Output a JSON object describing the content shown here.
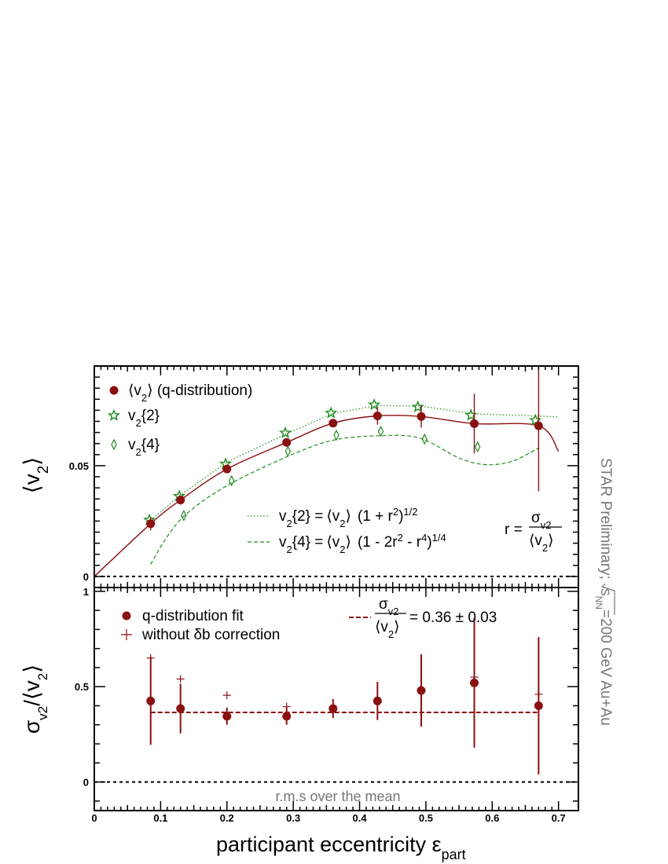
{
  "chart_data": [
    {
      "type": "scatter",
      "panel": "top",
      "ylabel_main": "⟨v",
      "ylabel_sub": "2",
      "ylabel_close": "⟩",
      "ylim": [
        -0.005,
        0.095
      ],
      "xlim": [
        0,
        0.73
      ],
      "y_ticklabels": [
        "0",
        "0.05"
      ],
      "legend": {
        "mean_v2": {
          "main": "⟨v",
          "sub": "2",
          "rest": "⟩ (q-distribution)"
        },
        "v2_2": {
          "main": "v",
          "sub": "2",
          "rest": "{2}"
        },
        "v2_4": {
          "main": "v",
          "sub": "2",
          "rest": "{4}"
        }
      },
      "series": [
        {
          "name": "⟨v2⟩ (q-distribution)",
          "marker": "circle",
          "color": "#8b1010",
          "points": [
            {
              "x": 0.085,
              "y": 0.0238,
              "err": 0.003
            },
            {
              "x": 0.13,
              "y": 0.0345,
              "err": 0.002
            },
            {
              "x": 0.2,
              "y": 0.0485,
              "err": 0.0015
            },
            {
              "x": 0.29,
              "y": 0.0605,
              "err": 0.0015
            },
            {
              "x": 0.36,
              "y": 0.0692,
              "err": 0.0015
            },
            {
              "x": 0.427,
              "y": 0.0725,
              "err": 0.004
            },
            {
              "x": 0.493,
              "y": 0.0722,
              "err": 0.005
            },
            {
              "x": 0.573,
              "y": 0.069,
              "err": 0.0135
            },
            {
              "x": 0.67,
              "y": 0.068,
              "err": 0.0295
            }
          ]
        },
        {
          "name": "v2{2}",
          "marker": "open-star",
          "color": "#1f8c1f",
          "points": [
            {
              "x": 0.083,
              "y": 0.0255
            },
            {
              "x": 0.128,
              "y": 0.0362
            },
            {
              "x": 0.198,
              "y": 0.0508
            },
            {
              "x": 0.288,
              "y": 0.0648
            },
            {
              "x": 0.357,
              "y": 0.0738
            },
            {
              "x": 0.422,
              "y": 0.0775
            },
            {
              "x": 0.488,
              "y": 0.0765
            },
            {
              "x": 0.568,
              "y": 0.0728
            },
            {
              "x": 0.665,
              "y": 0.0705
            }
          ]
        },
        {
          "name": "v2{4}",
          "marker": "open-diamond",
          "color": "#1f8c1f",
          "points": [
            {
              "x": 0.135,
              "y": 0.0275
            },
            {
              "x": 0.207,
              "y": 0.0432
            },
            {
              "x": 0.292,
              "y": 0.0565
            },
            {
              "x": 0.365,
              "y": 0.0638
            },
            {
              "x": 0.432,
              "y": 0.0655
            },
            {
              "x": 0.498,
              "y": 0.062
            },
            {
              "x": 0.578,
              "y": 0.0585
            }
          ]
        }
      ],
      "curves": [
        {
          "name": "fit",
          "style": "solid",
          "color": "#8b1010",
          "x_range": [
            0,
            0.7
          ]
        },
        {
          "name": "v2{2} from ⟨v2⟩",
          "style": "dotted",
          "color": "#1f8c1f",
          "x_range": [
            0.085,
            0.7
          ]
        },
        {
          "name": "v2{4} from ⟨v2⟩",
          "style": "dashed",
          "color": "#1f8c1f",
          "x_range": [
            0.085,
            0.67
          ]
        }
      ],
      "formulas": {
        "v2_2": {
          "lhs": "v",
          "lhs_sub": "2",
          "lhs_rest": "{2} =",
          "mean": "⟨v",
          "mean_sub": "2",
          "mean_close": "⟩",
          "body": "(1 + r",
          "sup1": "2",
          "close": ")",
          "sup2": "1/2"
        },
        "v2_4": {
          "lhs": "v",
          "lhs_sub": "2",
          "lhs_rest": "{4} =",
          "mean": "⟨v",
          "mean_sub": "2",
          "mean_close": "⟩",
          "body": "(1 - 2r",
          "sup1": "2",
          "mid": " - r",
          "sup1b": "4",
          "close": ")",
          "sup2": "1/4"
        },
        "r_def": {
          "lhs": "r =",
          "num": "σ",
          "num_sub": "v2",
          "den": "⟨v",
          "den_sub": "2",
          "den_close": "⟩"
        }
      }
    },
    {
      "type": "scatter",
      "panel": "bottom",
      "ylabel_num": "σ",
      "ylabel_num_sub": "v2",
      "ylabel_den": "/⟨v",
      "ylabel_den_sub": "2",
      "ylabel_close": "⟩",
      "ylim": [
        -0.15,
        1.02
      ],
      "xlim": [
        0,
        0.73
      ],
      "y_ticklabels": [
        "0",
        "0.5",
        "1"
      ],
      "x_ticklabels": [
        "0",
        "0.1",
        "0.2",
        "0.3",
        "0.4",
        "0.5",
        "0.6",
        "0.7"
      ],
      "xlabel_main": "participant eccentricity ε",
      "xlabel_sub": "part",
      "legend": {
        "fit": "q-distribution fit",
        "nocorr": "without δb correction",
        "mean_line": {
          "num": "σ",
          "num_sub": "v2",
          "den": "⟨v",
          "den_sub": "2",
          "den_close": "⟩",
          "value": "= 0.36 ± 0.03"
        }
      },
      "caption": "r.m.s over the mean",
      "mean_value": 0.365,
      "mean_x_range": [
        0.085,
        0.67
      ],
      "series": [
        {
          "name": "q-distribution fit",
          "marker": "circle",
          "color": "#8b1010",
          "points": [
            {
              "x": 0.085,
              "y": 0.425,
              "err": 0.23
            },
            {
              "x": 0.13,
              "y": 0.385,
              "err": 0.13
            },
            {
              "x": 0.2,
              "y": 0.345,
              "err": 0.045
            },
            {
              "x": 0.29,
              "y": 0.345,
              "err": 0.045
            },
            {
              "x": 0.36,
              "y": 0.385,
              "err": 0.05
            },
            {
              "x": 0.427,
              "y": 0.425,
              "err": 0.1
            },
            {
              "x": 0.493,
              "y": 0.48,
              "err": 0.19
            },
            {
              "x": 0.573,
              "y": 0.52,
              "err": 0.34
            },
            {
              "x": 0.67,
              "y": 0.4,
              "err": 0.36
            }
          ]
        },
        {
          "name": "without δb correction",
          "marker": "plus",
          "color": "#8b1010",
          "points": [
            {
              "x": 0.085,
              "y": 0.65
            },
            {
              "x": 0.13,
              "y": 0.54
            },
            {
              "x": 0.2,
              "y": 0.455
            },
            {
              "x": 0.29,
              "y": 0.395
            },
            {
              "x": 0.36,
              "y": 0.395
            },
            {
              "x": 0.573,
              "y": 0.55
            },
            {
              "x": 0.67,
              "y": 0.46
            }
          ]
        }
      ]
    }
  ],
  "side_label": {
    "text1": "STAR Preliminary; ",
    "root": "s",
    "root_sub": "NN",
    "text2": "=200 GeV Au+Au"
  },
  "colors": {
    "data": "#8b1010",
    "green": "#1f8c1f",
    "grey": "#777777"
  }
}
